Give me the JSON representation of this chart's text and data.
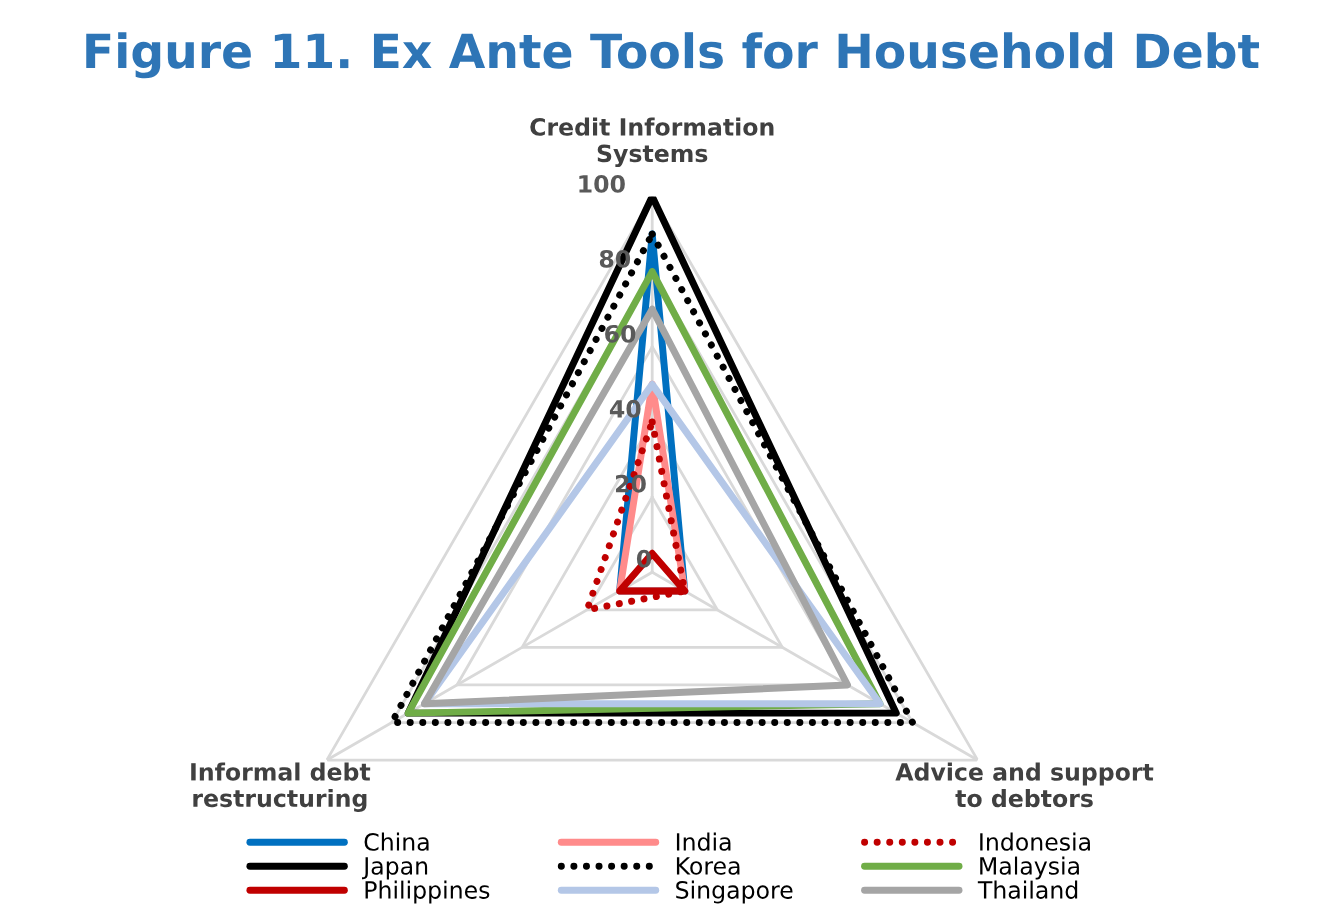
{
  "chart_data": {
    "type": "radar",
    "title": "Figure 11. Ex Ante Tools for Household Debt",
    "categories": [
      "Credit Information\nSystems",
      "Advice and support\nto debtors",
      "Informal debt\nrestructuring"
    ],
    "ylim": [
      0,
      100
    ],
    "yticks": [
      0,
      20,
      40,
      60,
      80,
      100
    ],
    "grid": true,
    "legend": "bottom",
    "series": [
      {
        "name": "China",
        "color": "#0070c0",
        "values": [
          90,
          10,
          10
        ]
      },
      {
        "name": "India",
        "color": "#ff8b8b",
        "values": [
          50,
          10,
          10
        ]
      },
      {
        "name": "Indonesia",
        "color": "#c00000",
        "line_style": "dotted",
        "values": [
          40,
          10,
          20
        ]
      },
      {
        "name": "Japan",
        "color": "#000000",
        "values": [
          100,
          75,
          75
        ]
      },
      {
        "name": "Korea",
        "color": "#000000",
        "line_style": "dotted",
        "values": [
          90,
          80,
          80
        ]
      },
      {
        "name": "Malaysia",
        "color": "#70ad47",
        "values": [
          80,
          70,
          75
        ]
      },
      {
        "name": "Philippines",
        "color": "#c00000",
        "values": [
          5,
          10,
          10
        ]
      },
      {
        "name": "Singapore",
        "color": "#b4c7e7",
        "values": [
          50,
          70,
          70
        ]
      },
      {
        "name": "Thailand",
        "color": "#a5a5a5",
        "values": [
          70,
          60,
          70
        ]
      }
    ]
  }
}
